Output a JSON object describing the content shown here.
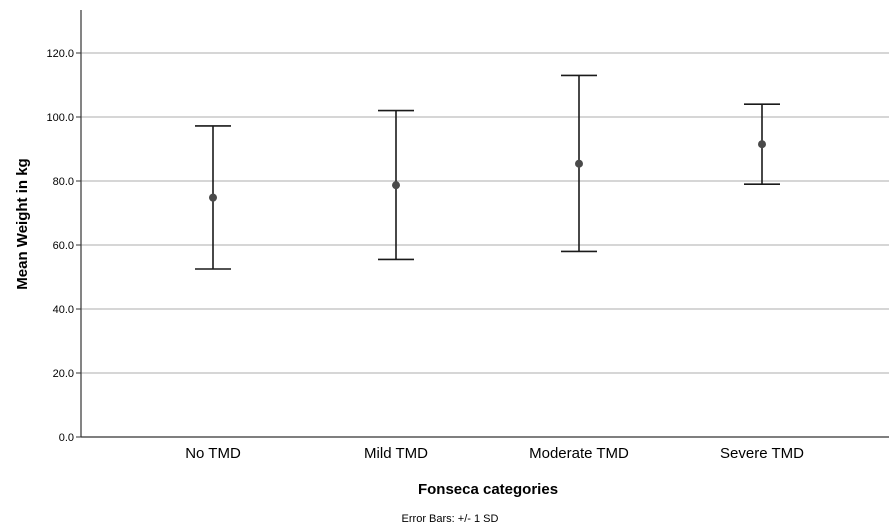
{
  "chart_data": {
    "type": "errorbar",
    "title": "",
    "xlabel": "Fonseca categories",
    "ylabel": "Mean Weight in kg",
    "footnote": "Error Bars: +/- 1 SD",
    "categories": [
      "No TMD",
      "Mild TMD",
      "Moderate TMD",
      "Severe TMD"
    ],
    "series": [
      {
        "mean": [
          74.8,
          78.7,
          85.4,
          91.5
        ],
        "lower": [
          52.5,
          55.5,
          58.0,
          79.0
        ],
        "upper": [
          97.2,
          102.0,
          113.0,
          104.0
        ]
      }
    ],
    "ylim": [
      0,
      130
    ],
    "yticks": [
      0,
      20,
      40,
      60,
      80,
      100,
      120
    ],
    "ytick_labels": [
      "0.0",
      "20.0",
      "40.0",
      "60.0",
      "80.0",
      "100.0",
      "120.0"
    ],
    "grid": true,
    "legend": "none",
    "colors": {
      "grid": "#bdbdbd",
      "axis": "#333333",
      "bar": "#1a1a1a",
      "point": "#4a4a4a"
    }
  }
}
